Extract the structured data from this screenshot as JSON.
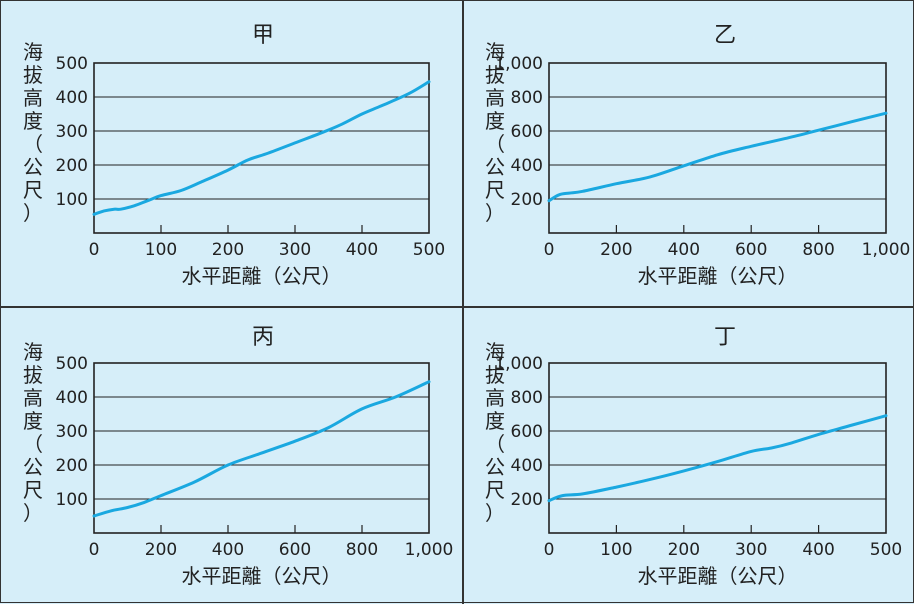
{
  "chart_data": [
    {
      "type": "line",
      "title": "甲",
      "xlabel": "水平距離（公尺）",
      "ylabel": "海拔高度（公尺）",
      "xlim": [
        0,
        500
      ],
      "ylim": [
        0,
        500
      ],
      "xticks": [
        "0",
        "100",
        "200",
        "300",
        "400",
        "500"
      ],
      "yticks": [
        "100",
        "200",
        "300",
        "400",
        "500"
      ],
      "grid": true,
      "series": [
        {
          "x": [
            0,
            15,
            30,
            40,
            60,
            80,
            100,
            130,
            160,
            200,
            230,
            260,
            300,
            340,
            370,
            400,
            430,
            470,
            500
          ],
          "y": [
            55,
            65,
            70,
            70,
            80,
            95,
            110,
            125,
            150,
            185,
            215,
            235,
            265,
            295,
            320,
            350,
            375,
            410,
            445
          ]
        }
      ]
    },
    {
      "type": "line",
      "title": "乙",
      "xlabel": "水平距離（公尺）",
      "ylabel": "海拔高度（公尺）",
      "xlim": [
        0,
        1000
      ],
      "ylim": [
        0,
        1000
      ],
      "xticks": [
        "0",
        "200",
        "400",
        "600",
        "800",
        "1,000"
      ],
      "yticks": [
        "200",
        "400",
        "600",
        "800",
        "1,000"
      ],
      "grid": true,
      "series": [
        {
          "x": [
            0,
            30,
            60,
            100,
            200,
            300,
            400,
            500,
            600,
            700,
            800,
            900,
            1000
          ],
          "y": [
            190,
            225,
            235,
            245,
            290,
            330,
            395,
            460,
            510,
            555,
            605,
            655,
            705
          ]
        }
      ]
    },
    {
      "type": "line",
      "title": "丙",
      "xlabel": "水平距離（公尺）",
      "ylabel": "海拔高度（公尺）",
      "xlim": [
        0,
        1000
      ],
      "ylim": [
        0,
        500
      ],
      "xticks": [
        "0",
        "200",
        "400",
        "600",
        "800",
        "1,000"
      ],
      "yticks": [
        "100",
        "200",
        "300",
        "400",
        "500"
      ],
      "grid": true,
      "series": [
        {
          "x": [
            0,
            50,
            100,
            150,
            200,
            300,
            400,
            500,
            600,
            700,
            800,
            900,
            1000
          ],
          "y": [
            50,
            65,
            75,
            90,
            110,
            150,
            200,
            235,
            270,
            310,
            365,
            400,
            445
          ]
        }
      ]
    },
    {
      "type": "line",
      "title": "丁",
      "xlabel": "水平距離（公尺）",
      "ylabel": "海拔高度（公尺）",
      "xlim": [
        0,
        500
      ],
      "ylim": [
        0,
        1000
      ],
      "xticks": [
        "0",
        "100",
        "200",
        "300",
        "400",
        "500"
      ],
      "yticks": [
        "200",
        "400",
        "600",
        "800",
        "1,000"
      ],
      "grid": true,
      "series": [
        {
          "x": [
            0,
            20,
            50,
            100,
            150,
            200,
            250,
            300,
            330,
            360,
            400,
            450,
            500
          ],
          "y": [
            190,
            220,
            230,
            270,
            315,
            365,
            420,
            480,
            500,
            530,
            580,
            635,
            690
          ]
        }
      ]
    }
  ],
  "style": {
    "background": "#d6eef9",
    "line_color": "#1aa8e0",
    "axis_color": "#222222",
    "border_color": "#333333"
  }
}
